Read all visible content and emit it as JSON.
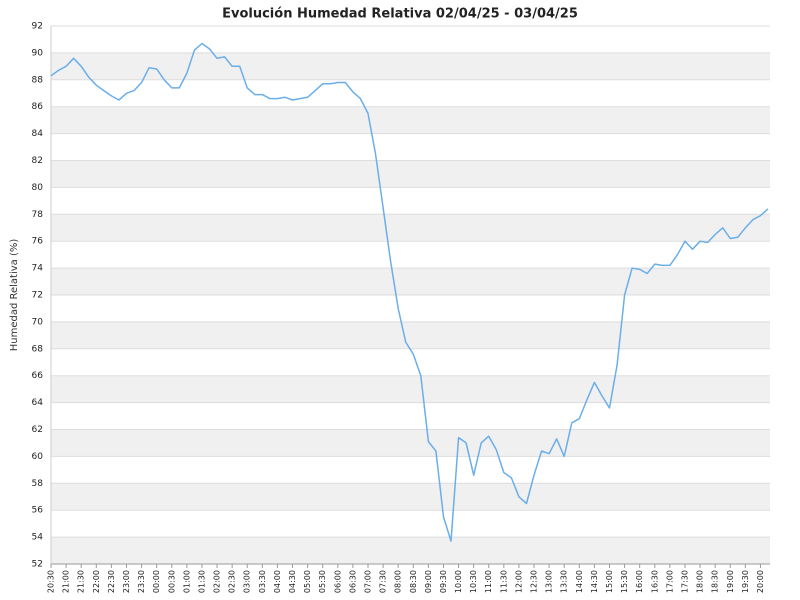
{
  "chart_data": {
    "type": "line",
    "title": "Evolución Humedad Relativa 02/04/25 - 03/04/25",
    "y_label": "Humedad Relativa (%)",
    "categories": [
      "20:30",
      null,
      "21:00",
      null,
      "21:30",
      null,
      "22:00",
      null,
      "22:30",
      null,
      "23:00",
      null,
      "23:30",
      null,
      "00:00",
      null,
      "00:30",
      null,
      "01:00",
      null,
      "01:30",
      null,
      "02:00",
      null,
      "02:30",
      null,
      "03:00",
      null,
      "03:30",
      null,
      "04:00",
      null,
      "04:30",
      null,
      "05:00",
      null,
      "05:30",
      null,
      "06:00",
      null,
      "06:30",
      null,
      "07:00",
      null,
      "07:30",
      null,
      "08:00",
      null,
      "08:30",
      null,
      "09:00",
      null,
      "09:30",
      null,
      "10:00",
      null,
      "10:30",
      null,
      "11:00",
      null,
      "11:30",
      null,
      "12:00",
      null,
      "12:30",
      null,
      "13:00",
      null,
      "13:30",
      null,
      "14:00",
      null,
      "14:30",
      null,
      "15:00",
      null,
      "15:30",
      null,
      "16:00",
      null,
      "16:30",
      null,
      "17:00",
      null,
      "17:30",
      null,
      "18:00",
      null,
      "18:30",
      null,
      "19:00",
      null,
      "19:30",
      null,
      "20:00",
      null
    ],
    "series": [
      {
        "name": "Humedad Relativa",
        "color": "#6aaeea",
        "values": [
          88.3,
          88.7,
          89.0,
          89.6,
          89.0,
          88.2,
          87.6,
          87.2,
          86.8,
          86.5,
          87.0,
          87.2,
          87.8,
          88.9,
          88.8,
          88.0,
          87.4,
          87.4,
          88.5,
          90.2,
          90.7,
          90.3,
          89.6,
          89.7,
          89.0,
          89.0,
          87.4,
          86.9,
          86.9,
          86.6,
          86.6,
          86.7,
          86.5,
          86.6,
          86.7,
          87.2,
          87.7,
          87.7,
          87.8,
          87.8,
          87.1,
          86.6,
          85.5,
          82.5,
          78.5,
          74.5,
          71.0,
          68.5,
          67.6,
          66.0,
          61.1,
          60.4,
          55.5,
          53.7,
          61.4,
          61.0,
          58.6,
          61.0,
          61.5,
          60.5,
          58.8,
          58.4,
          57.0,
          56.5,
          58.6,
          60.4,
          60.2,
          61.3,
          60.0,
          62.5,
          62.8,
          64.2,
          65.5,
          64.5,
          63.6,
          66.8,
          72.0,
          74.0,
          73.9,
          73.6,
          74.3,
          74.2,
          74.2,
          75.0,
          76.0,
          75.4,
          76.0,
          75.9,
          76.5,
          77.0,
          76.2,
          76.3,
          77.0,
          77.6,
          77.9,
          78.4
        ]
      }
    ],
    "ylim": [
      52,
      92
    ],
    "yticks": [
      52,
      54,
      56,
      58,
      60,
      62,
      64,
      66,
      68,
      70,
      72,
      74,
      76,
      78,
      80,
      82,
      84,
      86,
      88,
      90,
      92
    ],
    "grid": true
  }
}
